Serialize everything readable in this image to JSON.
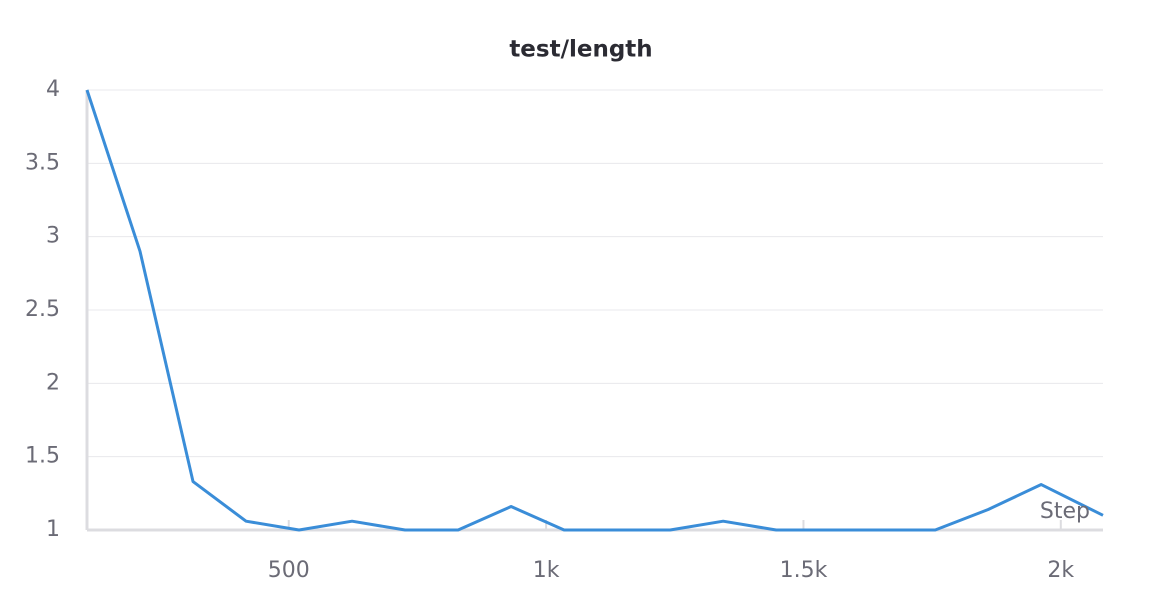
{
  "chart_data": {
    "type": "line",
    "title": "test/length",
    "x_label": "Step",
    "x": [
      108,
      211,
      314,
      417,
      520,
      623,
      726,
      829,
      932,
      1035,
      1138,
      1241,
      1344,
      1447,
      1550,
      1653,
      1756,
      1859,
      1962,
      2082
    ],
    "series": [
      {
        "name": "test/length",
        "color": "#3a8dd8",
        "values": [
          4.0,
          2.9,
          1.33,
          1.06,
          1.0,
          1.06,
          1.0,
          1.0,
          1.16,
          1.0,
          1.0,
          1.0,
          1.06,
          1.0,
          1.0,
          1.0,
          1.0,
          1.14,
          1.31,
          1.1
        ]
      }
    ],
    "xlim": [
      108,
      2082
    ],
    "xticks": [
      {
        "value": 500,
        "label": "500"
      },
      {
        "value": 1000,
        "label": "1k"
      },
      {
        "value": 1500,
        "label": "1.5k"
      },
      {
        "value": 2000,
        "label": "2k"
      }
    ],
    "ylim": [
      1,
      4
    ],
    "yticks": [
      1,
      1.5,
      2,
      2.5,
      3,
      3.5,
      4
    ],
    "grid": true
  }
}
